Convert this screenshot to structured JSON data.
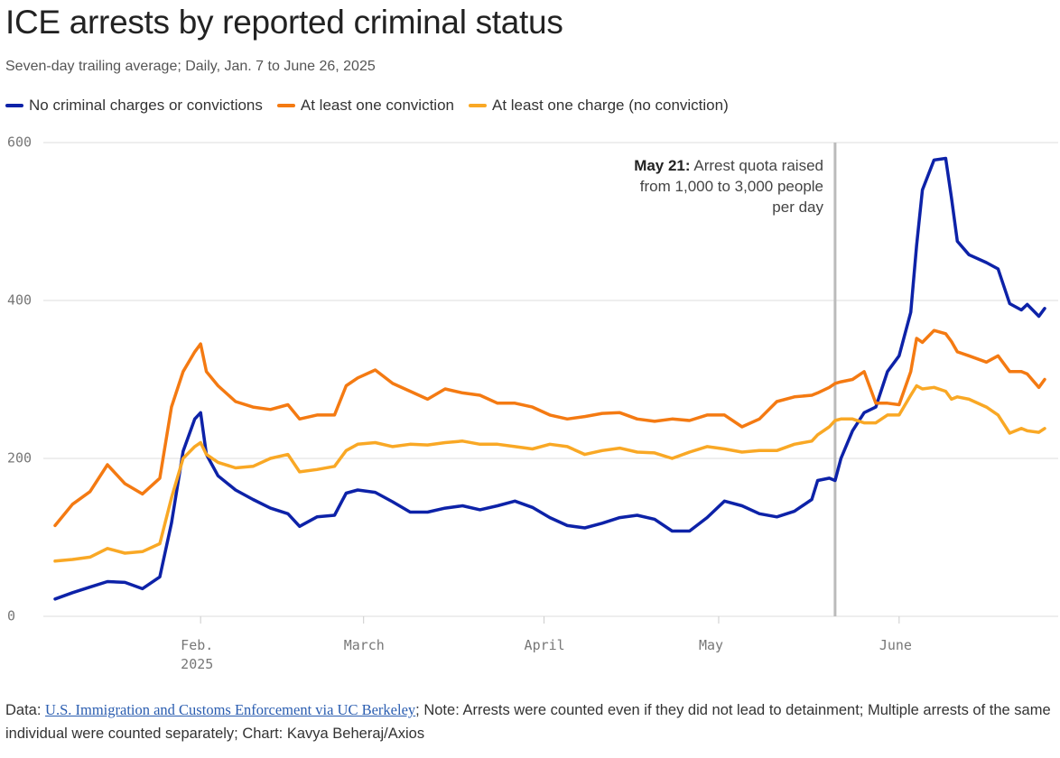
{
  "chart_data": {
    "type": "line",
    "title": "ICE arrests by reported criminal status",
    "subtitle": "Seven-day trailing average; Daily, Jan. 7 to June 26, 2025",
    "x": [
      "2025-01-07",
      "2025-01-10",
      "2025-01-13",
      "2025-01-16",
      "2025-01-19",
      "2025-01-22",
      "2025-01-25",
      "2025-01-27",
      "2025-01-29",
      "2025-01-31",
      "2025-02-01",
      "2025-02-02",
      "2025-02-04",
      "2025-02-07",
      "2025-02-10",
      "2025-02-13",
      "2025-02-16",
      "2025-02-18",
      "2025-02-21",
      "2025-02-24",
      "2025-02-26",
      "2025-02-28",
      "2025-03-03",
      "2025-03-06",
      "2025-03-09",
      "2025-03-12",
      "2025-03-15",
      "2025-03-18",
      "2025-03-21",
      "2025-03-24",
      "2025-03-27",
      "2025-03-30",
      "2025-04-02",
      "2025-04-05",
      "2025-04-08",
      "2025-04-11",
      "2025-04-14",
      "2025-04-17",
      "2025-04-20",
      "2025-04-23",
      "2025-04-26",
      "2025-04-29",
      "2025-05-02",
      "2025-05-05",
      "2025-05-08",
      "2025-05-11",
      "2025-05-14",
      "2025-05-17",
      "2025-05-18",
      "2025-05-20",
      "2025-05-21",
      "2025-05-22",
      "2025-05-24",
      "2025-05-26",
      "2025-05-28",
      "2025-05-30",
      "2025-06-01",
      "2025-06-03",
      "2025-06-04",
      "2025-06-05",
      "2025-06-07",
      "2025-06-09",
      "2025-06-10",
      "2025-06-11",
      "2025-06-13",
      "2025-06-16",
      "2025-06-18",
      "2025-06-20",
      "2025-06-22",
      "2025-06-23",
      "2025-06-25",
      "2025-06-26"
    ],
    "series": [
      {
        "name": "No criminal charges or convictions",
        "color": "#0d22a8",
        "values": [
          22,
          30,
          37,
          44,
          43,
          35,
          50,
          118,
          209,
          250,
          258,
          205,
          178,
          160,
          148,
          137,
          130,
          114,
          126,
          128,
          156,
          160,
          157,
          145,
          132,
          132,
          137,
          140,
          135,
          140,
          146,
          138,
          125,
          115,
          112,
          118,
          125,
          128,
          123,
          108,
          108,
          125,
          146,
          140,
          130,
          126,
          133,
          148,
          172,
          175,
          172,
          200,
          235,
          258,
          265,
          310,
          330,
          385,
          470,
          540,
          578,
          580,
          530,
          475,
          458,
          448,
          440,
          396,
          388,
          395,
          380,
          390
        ]
      },
      {
        "name": "At least one conviction",
        "color": "#f47a12",
        "values": [
          115,
          142,
          158,
          192,
          168,
          155,
          175,
          265,
          310,
          335,
          345,
          310,
          292,
          272,
          265,
          262,
          268,
          250,
          255,
          255,
          292,
          302,
          312,
          295,
          285,
          275,
          288,
          283,
          280,
          270,
          270,
          265,
          255,
          250,
          253,
          257,
          258,
          250,
          247,
          250,
          248,
          255,
          255,
          240,
          250,
          272,
          278,
          280,
          283,
          290,
          295,
          297,
          300,
          310,
          270,
          270,
          268,
          310,
          352,
          347,
          362,
          358,
          348,
          335,
          330,
          322,
          330,
          310,
          310,
          307,
          290,
          300
        ]
      },
      {
        "name": "At least one charge (no conviction)",
        "color": "#f9a825",
        "values": [
          70,
          72,
          75,
          86,
          80,
          82,
          92,
          150,
          200,
          215,
          220,
          205,
          195,
          188,
          190,
          200,
          205,
          183,
          186,
          190,
          210,
          218,
          220,
          215,
          218,
          217,
          220,
          222,
          218,
          218,
          215,
          212,
          218,
          215,
          205,
          210,
          213,
          208,
          207,
          200,
          208,
          215,
          212,
          208,
          210,
          210,
          218,
          222,
          230,
          240,
          248,
          250,
          250,
          245,
          245,
          255,
          255,
          280,
          292,
          288,
          290,
          285,
          275,
          278,
          275,
          265,
          255,
          232,
          238,
          235,
          233,
          238
        ]
      }
    ],
    "xlim": [
      "2025-01-07",
      "2025-06-26"
    ],
    "xticks": [
      {
        "value": "2025-02-01",
        "label": "Feb.\n2025"
      },
      {
        "value": "2025-03-01",
        "label": "March"
      },
      {
        "value": "2025-04-01",
        "label": "April"
      },
      {
        "value": "2025-05-01",
        "label": "May"
      },
      {
        "value": "2025-06-01",
        "label": "June"
      }
    ],
    "ylim": [
      0,
      600
    ],
    "yticks": [
      0,
      200,
      400,
      600
    ],
    "grid": true,
    "annotation": {
      "x": "2025-05-21",
      "label": "May 21:",
      "text": "Arrest quota raised from 1,000 to 3,000 people per day"
    },
    "source": {
      "prefix": "Data:",
      "link": "U.S. Immigration and Customs Enforcement via UC Berkeley",
      "suffix": "; Note: Arrests were counted even if they did not lead to detainment; Multiple arrests of the same individual were counted separately; Chart: Kavya Beheraj/Axios"
    }
  }
}
